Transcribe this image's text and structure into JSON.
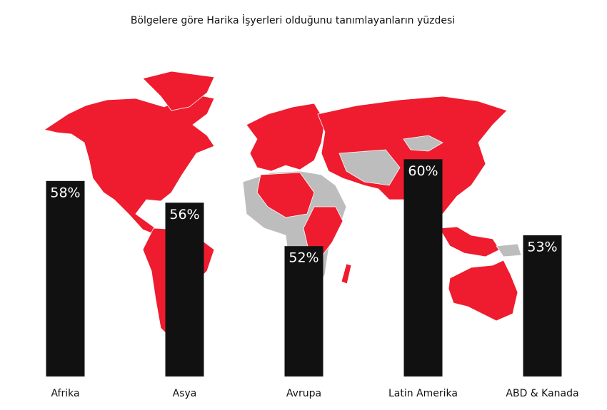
{
  "chart_data": {
    "type": "bar",
    "title": "Bölgelere göre Harika İşyerleri olduğunu tanımlayanların yüzdesi",
    "categories": [
      "Afrika",
      "Asya",
      "Avrupa",
      "Latin Amerika",
      "ABD & Kanada"
    ],
    "values": [
      58,
      56,
      52,
      60,
      53
    ],
    "value_labels": [
      "58%",
      "56%",
      "52%",
      "60%",
      "53%"
    ],
    "color": "#111111",
    "ylim": [
      40,
      70
    ]
  }
}
